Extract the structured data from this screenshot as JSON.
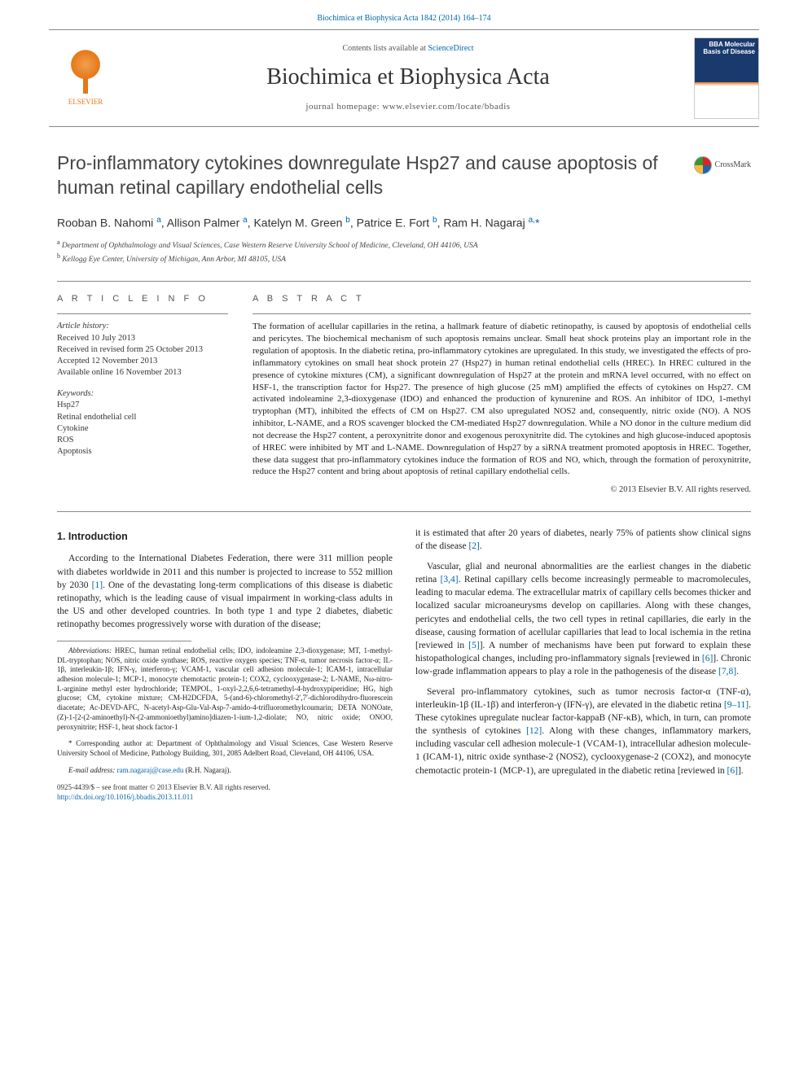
{
  "top_ref": "Biochimica et Biophysica Acta 1842 (2014) 164–174",
  "banner": {
    "elsevier_label": "ELSEVIER",
    "contents_prefix": "Contents lists available at ",
    "contents_link": "ScienceDirect",
    "journal_name": "Biochimica et Biophysica Acta",
    "homepage": "journal homepage: www.elsevier.com/locate/bbadis",
    "cover_label": "BBA\nMolecular\nBasis of\nDisease"
  },
  "article": {
    "title": "Pro-inflammatory cytokines downregulate Hsp27 and cause apoptosis of human retinal capillary endothelial cells",
    "crossmark": "CrossMark",
    "authors_html": "Rooban B. Nahomi <sup>a</sup>, Allison Palmer <sup>a</sup>, Katelyn M. Green <sup>b</sup>, Patrice E. Fort <sup>b</sup>, Ram H. Nagaraj <sup>a,</sup><span class='corr'>*</span>",
    "affiliations": {
      "a": "Department of Ophthalmology and Visual Sciences, Case Western Reserve University School of Medicine, Cleveland, OH 44106, USA",
      "b": "Kellogg Eye Center, University of Michigan, Ann Arbor, MI 48105, USA"
    }
  },
  "info": {
    "heading": "A R T I C L E   I N F O",
    "history_label": "Article history:",
    "history": [
      "Received 10 July 2013",
      "Received in revised form 25 October 2013",
      "Accepted 12 November 2013",
      "Available online 16 November 2013"
    ],
    "keywords_label": "Keywords:",
    "keywords": [
      "Hsp27",
      "Retinal endothelial cell",
      "Cytokine",
      "ROS",
      "Apoptosis"
    ]
  },
  "abstract": {
    "heading": "A B S T R A C T",
    "text": "The formation of acellular capillaries in the retina, a hallmark feature of diabetic retinopathy, is caused by apoptosis of endothelial cells and pericytes. The biochemical mechanism of such apoptosis remains unclear. Small heat shock proteins play an important role in the regulation of apoptosis. In the diabetic retina, pro-inflammatory cytokines are upregulated. In this study, we investigated the effects of pro-inflammatory cytokines on small heat shock protein 27 (Hsp27) in human retinal endothelial cells (HREC). In HREC cultured in the presence of cytokine mixtures (CM), a significant downregulation of Hsp27 at the protein and mRNA level occurred, with no effect on HSF-1, the transcription factor for Hsp27. The presence of high glucose (25 mM) amplified the effects of cytokines on Hsp27. CM activated indoleamine 2,3-dioxygenase (IDO) and enhanced the production of kynurenine and ROS. An inhibitor of IDO, 1-methyl tryptophan (MT), inhibited the effects of CM on Hsp27. CM also upregulated NOS2 and, consequently, nitric oxide (NO). A NOS inhibitor, L-NAME, and a ROS scavenger blocked the CM-mediated Hsp27 downregulation. While a NO donor in the culture medium did not decrease the Hsp27 content, a peroxynitrite donor and exogenous peroxynitrite did. The cytokines and high glucose-induced apoptosis of HREC were inhibited by MT and L-NAME. Downregulation of Hsp27 by a siRNA treatment promoted apoptosis in HREC. Together, these data suggest that pro-inflammatory cytokines induce the formation of ROS and NO, which, through the formation of peroxynitrite, reduce the Hsp27 content and bring about apoptosis of retinal capillary endothelial cells.",
    "copyright": "© 2013 Elsevier B.V. All rights reserved."
  },
  "body": {
    "section_heading": "1. Introduction",
    "p1": "According to the International Diabetes Federation, there were 311 million people with diabetes worldwide in 2011 and this number is projected to increase to 552 million by 2030 [1]. One of the devastating long-term complications of this disease is diabetic retinopathy, which is the leading cause of visual impairment in working-class adults in the US and other developed countries. In both type 1 and type 2 diabetes, diabetic retinopathy becomes progressively worse with duration of the disease;",
    "p1_cont": "it is estimated that after 20 years of diabetes, nearly 75% of patients show clinical signs of the disease [2].",
    "p2": "Vascular, glial and neuronal abnormalities are the earliest changes in the diabetic retina [3,4]. Retinal capillary cells become increasingly permeable to macromolecules, leading to macular edema. The extracellular matrix of capillary cells becomes thicker and localized sacular microaneurysms develop on capillaries. Along with these changes, pericytes and endothelial cells, the two cell types in retinal capillaries, die early in the disease, causing formation of acellular capillaries that lead to local ischemia in the retina [reviewed in [5]]. A number of mechanisms have been put forward to explain these histopathological changes, including pro-inflammatory signals [reviewed in [6]]. Chronic low-grade inflammation appears to play a role in the pathogenesis of the disease [7,8].",
    "p3": "Several pro-inflammatory cytokines, such as tumor necrosis factor-α (TNF-α), interleukin-1β (IL-1β) and interferon-γ (IFN-γ), are elevated in the diabetic retina [9–11]. These cytokines upregulate nuclear factor-kappaB (NF-κB), which, in turn, can promote the synthesis of cytokines [12]. Along with these changes, inflammatory markers, including vascular cell adhesion molecule-1 (VCAM-1), intracellular adhesion molecule-1 (ICAM-1), nitric oxide synthase-2 (NOS2), cyclooxygenase-2 (COX2), and monocyte chemotactic protein-1 (MCP-1), are upregulated in the diabetic retina [reviewed in [6]]."
  },
  "footnotes": {
    "abbrev_label": "Abbreviations:",
    "abbrev": "HREC, human retinal endothelial cells; IDO, indoleamine 2,3-dioxygenase; MT, 1-methyl-DL-tryptophan; NOS, nitric oxide synthase; ROS, reactive oxygen species; TNF-α, tumor necrosis factor-α; IL-1β, interleukin-1β; IFN-γ, interferon-γ; VCAM-1, vascular cell adhesion molecule-1; ICAM-1, intracellular adhesion molecule-1; MCP-1, monocyte chemotactic protein-1; COX2, cyclooxygenase-2; L-NAME, Nω-nitro-L-arginine methyl ester hydrochloride; TEMPOL, 1-oxyl-2,2,6,6-tetramethyl-4-hydroxypiperidine; HG, high glucose; CM, cytokine mixture; CM-H2DCFDA, 5-(and-6)-chloromethyl-2′,7′-dichlorodihydro-fluorescein diacetate; Ac-DEVD-AFC, N-acetyl-Asp-Glu-Val-Asp-7-amido-4-trifluoromethylcoumarin; DETA NONOate, (Z)-1-[2-(2-aminoethyl)-N-(2-ammonioethyl)amino]diazen-1-ium-1,2-diolate; NO, nitric oxide; ONOO, peroxynitrite; HSF-1, heat shock factor-1",
    "corr": "* Corresponding author at: Department of Ophthalmology and Visual Sciences, Case Western Reserve University School of Medicine, Pathology Building, 301, 2085 Adelbert Road, Cleveland, OH 44106, USA.",
    "email_label": "E-mail address:",
    "email": "ram.nagaraj@case.edu",
    "email_suffix": "(R.H. Nagaraj)."
  },
  "footer": {
    "line1": "0925-4439/$ – see front matter © 2013 Elsevier B.V. All rights reserved.",
    "doi": "http://dx.doi.org/10.1016/j.bbadis.2013.11.011"
  },
  "colors": {
    "link": "#0066aa",
    "elsevier": "#e67817",
    "text": "#222222",
    "rule": "#888888"
  }
}
